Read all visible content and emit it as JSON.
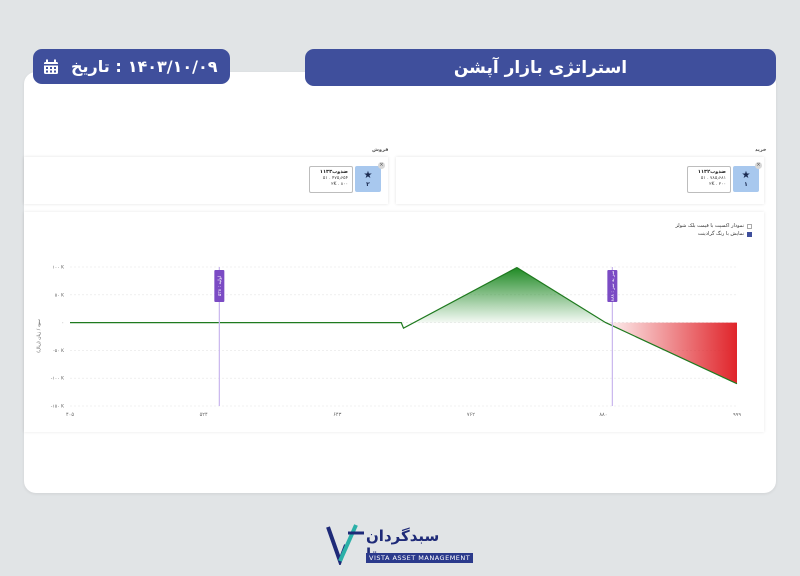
{
  "header": {
    "title": "استراتژی بازار آپشن",
    "date_label": "تاریخ :",
    "date_value": "۱۴۰۳/۱۰/۰۹"
  },
  "sections": {
    "buy_label": "خرید",
    "sell_label": "فروش"
  },
  "legs": [
    {
      "side": "buy",
      "line1": "ضذوب۱۱۳۲",
      "line2": "۵۱ . ۷۸۵٫۶۸۱",
      "line3": "۲K . ۲۰۰",
      "badge_num": "۱",
      "close": "×"
    },
    {
      "side": "sell",
      "line1": "ضذوب۱۱۳۳",
      "line2": "۵۱ . ۴۷۵٫۶۵۴",
      "line3": "۲K . ۸۰۰",
      "badge_num": "۲",
      "close": "×"
    }
  ],
  "options": {
    "opt1_label": "نمودار اکسپت با قیمت بلک شولز",
    "opt1_checked": false,
    "opt2_label": "نمایش با رنگ گرادینت",
    "opt2_checked": true
  },
  "chart_data": {
    "type": "area",
    "ylabel": "سود / زیان (ریال)",
    "x_ticks": [
      "۴۰۵",
      "۵۲۴",
      "۶۴۳",
      "۷۶۲",
      "۸۸۰",
      "۹۹۹"
    ],
    "y_ticks": [
      "۱۰۰ K",
      "۵۰ K",
      "۰",
      "-۵۰ K",
      "-۱۰۰ K",
      "-۱۵۰ K"
    ],
    "xlim": [
      405,
      999
    ],
    "ylim": [
      -150,
      100
    ],
    "series": [
      {
        "points": [
          [
            405,
            0
          ],
          [
            700,
            0
          ],
          [
            702,
            -10
          ],
          [
            803,
            99
          ],
          [
            882,
            0
          ],
          [
            999,
            -110
          ]
        ]
      }
    ],
    "markers": [
      {
        "x": 538,
        "label": "۵۳۸ : اولیه"
      },
      {
        "x": 888,
        "label": "۸۸۸ : سر به سر"
      }
    ],
    "colors": {
      "profit": "#1f8a24",
      "loss": "#e0242a",
      "line": "#1f7a1f",
      "marker": "#7b4bc4"
    }
  },
  "logo": {
    "fa": "سبدگردان ویستا",
    "en": "VISTA ASSET MANAGEMENT"
  }
}
